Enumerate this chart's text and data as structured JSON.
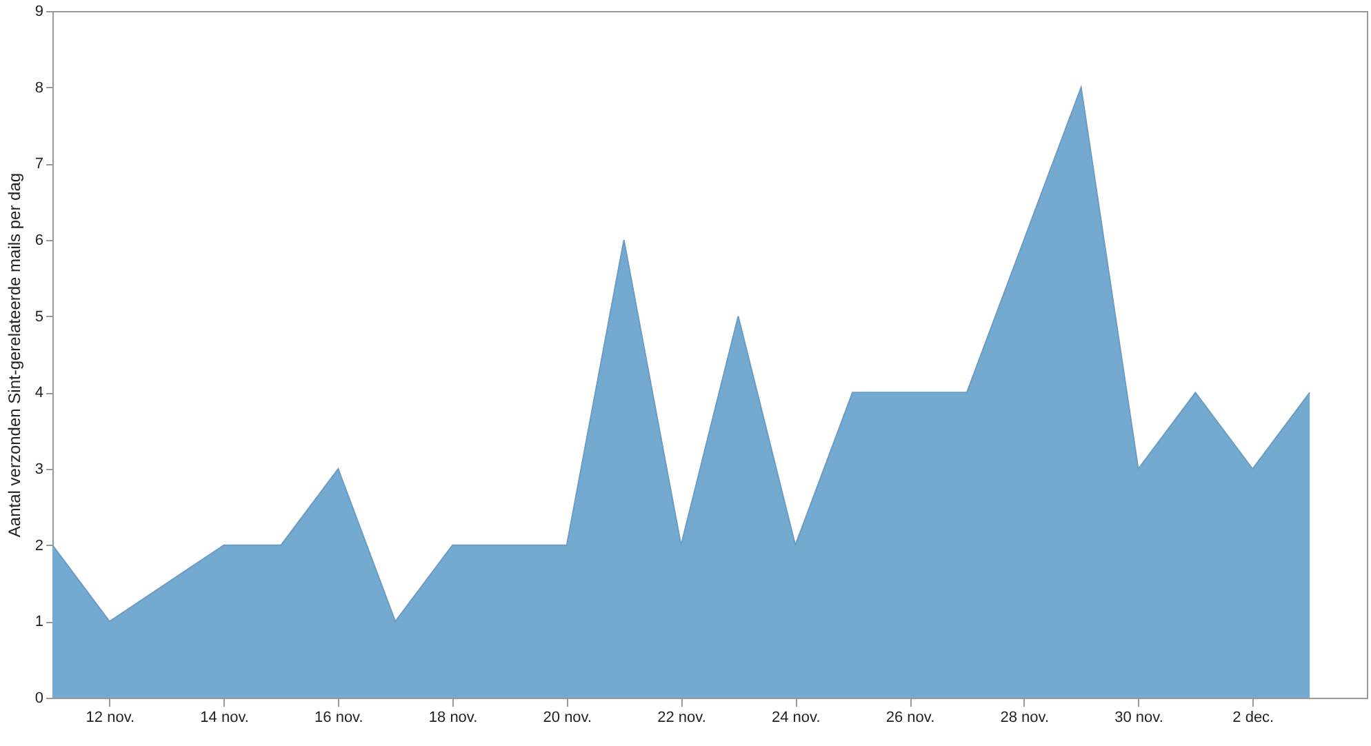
{
  "chart_data": {
    "type": "area",
    "ylabel": "Aantal verzonden Sint-gerelateerde mails per dag",
    "x": [
      "--11-11",
      "--11-12",
      "--11-14",
      "--11-15",
      "--11-16",
      "--11-17",
      "--11-18",
      "--11-19",
      "--11-20",
      "--11-21",
      "--11-22",
      "--11-23",
      "--11-24",
      "--11-25",
      "--11-26",
      "--11-27",
      "--11-28",
      "--11-29",
      "--11-30",
      "--12-01",
      "--12-02",
      "--12-03"
    ],
    "series": [
      {
        "color": "#75aad0",
        "values": [
          2,
          1,
          2,
          2,
          3,
          1,
          2,
          2,
          2,
          6,
          2,
          5,
          2,
          4,
          4,
          4,
          6,
          8,
          3,
          4,
          3,
          4
        ]
      }
    ],
    "xlim": [
      "--11-11",
      "--12-04"
    ],
    "xticks": [
      {
        "value": "--11-12",
        "label": "12 nov."
      },
      {
        "value": "--11-14",
        "label": "14 nov."
      },
      {
        "value": "--11-16",
        "label": "16 nov."
      },
      {
        "value": "--11-18",
        "label": "18 nov."
      },
      {
        "value": "--11-20",
        "label": "20 nov."
      },
      {
        "value": "--11-22",
        "label": "22 nov."
      },
      {
        "value": "--11-24",
        "label": "24 nov."
      },
      {
        "value": "--11-26",
        "label": "26 nov."
      },
      {
        "value": "--11-28",
        "label": "28 nov."
      },
      {
        "value": "--11-30",
        "label": "30 nov."
      },
      {
        "value": "--12-02",
        "label": "2 dec."
      }
    ],
    "ylim": [
      0,
      9
    ],
    "yticks": [
      0,
      1,
      2,
      3,
      4,
      5,
      6,
      7,
      8,
      9
    ]
  }
}
